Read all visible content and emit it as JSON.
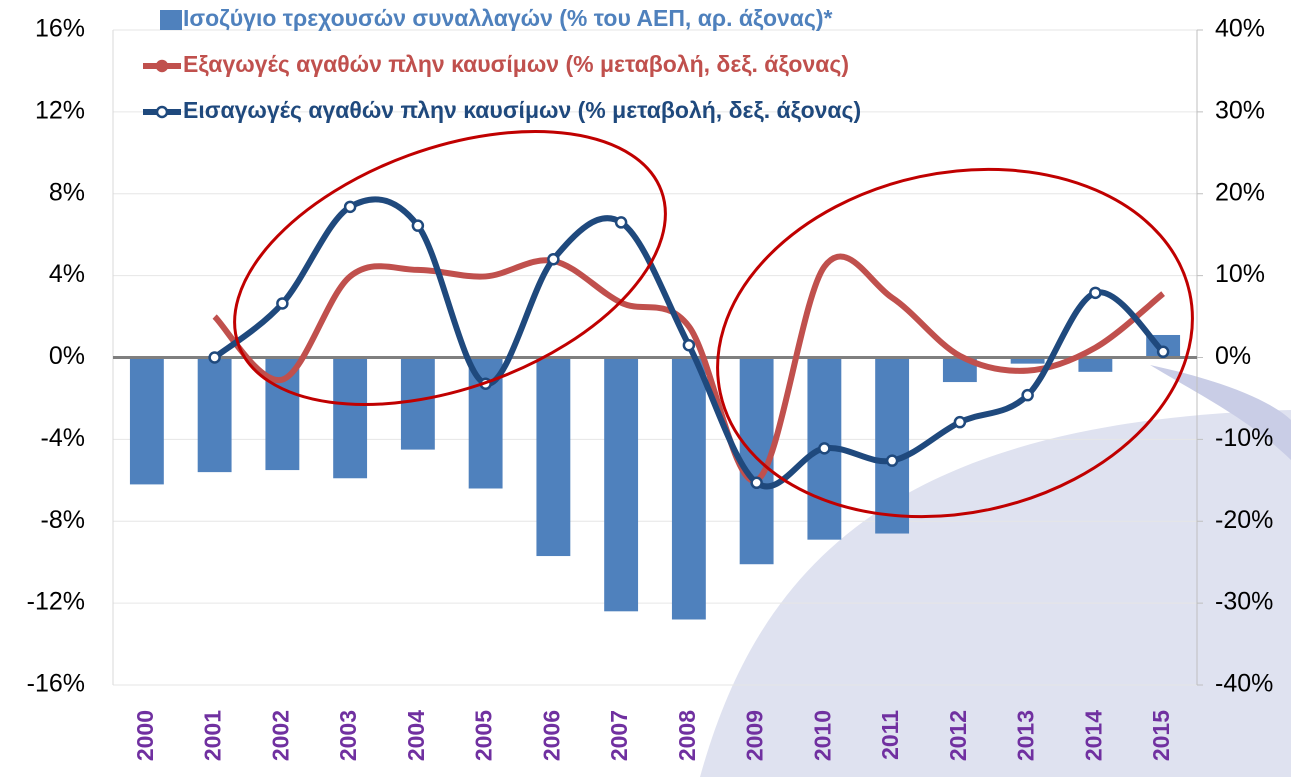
{
  "chart_data": {
    "type": "bar",
    "categories": [
      "2000",
      "2001",
      "2002",
      "2003",
      "2004",
      "2005",
      "2006",
      "2007",
      "2008",
      "2009",
      "2010",
      "2011",
      "2012",
      "2013",
      "2014",
      "2015"
    ],
    "series": [
      {
        "name": "Ισοζύγιο τρεχουσών συναλλαγών (% του ΑΕΠ, αρ. άξονας)*",
        "type": "bar",
        "color": "#4f81bd",
        "values": [
          -6.2,
          -5.6,
          -5.5,
          -5.9,
          -4.5,
          -6.4,
          -9.7,
          -12.4,
          -12.8,
          -10.1,
          -8.9,
          -8.6,
          -1.2,
          -0.3,
          -0.7,
          1.1
        ]
      },
      {
        "name": "Εξαγωγές αγαθών πλην καυσίμων (% μεταβολή, δεξ. άξονας)",
        "type": "line",
        "axis": "y2",
        "color": "#c0504d",
        "values": [
          null,
          5.0,
          -2.7,
          9.9,
          10.7,
          9.9,
          11.8,
          6.7,
          3.8,
          -15.0,
          11.1,
          7.3,
          0.2,
          -1.6,
          1.2,
          7.8
        ]
      },
      {
        "name": "Εισαγωγές αγαθών πλην καυσίμων (% μεταβολή, δεξ. άξονας)",
        "type": "line",
        "axis": "y2",
        "color": "#1f497d",
        "markers": true,
        "values": [
          null,
          0.0,
          6.6,
          18.4,
          16.1,
          -3.2,
          12.0,
          16.5,
          1.5,
          -15.3,
          -11.1,
          -12.6,
          -7.9,
          -4.6,
          7.9,
          0.7
        ]
      }
    ],
    "ylim": [
      -16,
      16
    ],
    "yticks": [
      {
        "value": -16,
        "label": "-16%"
      },
      {
        "value": -12,
        "label": "-12%"
      },
      {
        "value": -8,
        "label": "-8%"
      },
      {
        "value": -4,
        "label": "-4%"
      },
      {
        "value": 0,
        "label": "0%"
      },
      {
        "value": 4,
        "label": "4%"
      },
      {
        "value": 8,
        "label": "8%"
      },
      {
        "value": 12,
        "label": "12%"
      },
      {
        "value": 16,
        "label": "16%"
      }
    ],
    "y2lim": [
      -40,
      40
    ],
    "y2ticks": [
      {
        "value": -40,
        "label": "-40%"
      },
      {
        "value": -30,
        "label": "-30%"
      },
      {
        "value": -20,
        "label": "-20%"
      },
      {
        "value": -10,
        "label": "-10%"
      },
      {
        "value": 0,
        "label": "0%"
      },
      {
        "value": 10,
        "label": "10%"
      },
      {
        "value": 20,
        "label": "20%"
      },
      {
        "value": 30,
        "label": "30%"
      },
      {
        "value": 40,
        "label": "40%"
      }
    ],
    "grid": true,
    "legend": "top"
  }
}
